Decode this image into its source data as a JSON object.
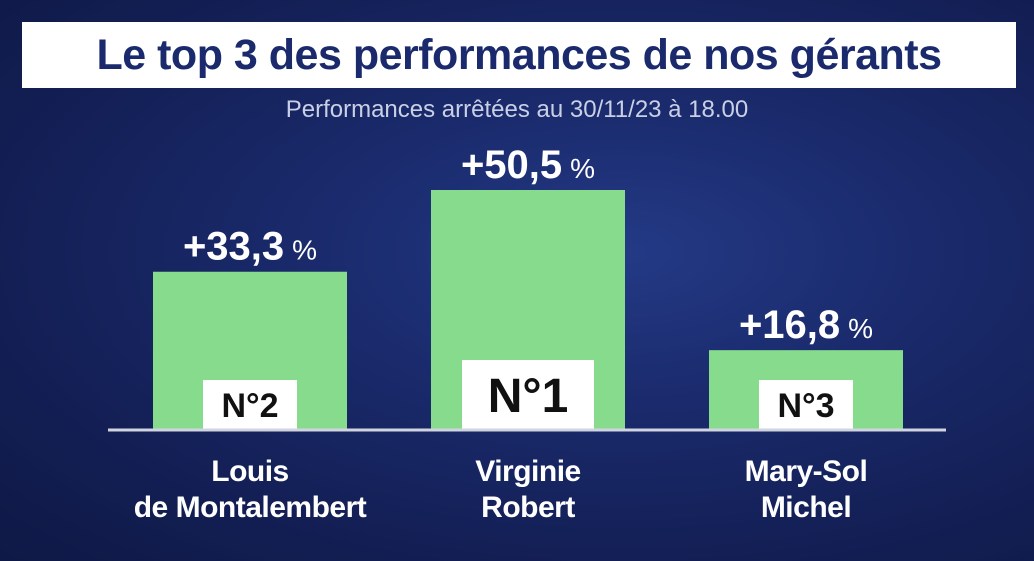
{
  "title": "Le top 3 des performances de nos gérants",
  "subtitle": "Performances arrêtées au 30/11/23 à 18.00",
  "colors": {
    "bar": "#86dc8c",
    "background": "#1a2a6c",
    "baseline": "#d0d4e0",
    "rank_box": "#ffffff"
  },
  "chart_data": {
    "type": "bar",
    "categories": [
      "Louis de Montalembert",
      "Virginie Robert",
      "Mary-Sol Michel"
    ],
    "values": [
      33.3,
      50.5,
      16.8
    ],
    "value_labels": [
      "+33,3",
      "+50,5",
      "+16,8"
    ],
    "unit": "%",
    "ranks": [
      "N°2",
      "N°1",
      "N°3"
    ],
    "names": [
      [
        "Louis",
        "de Montalembert"
      ],
      [
        "Virginie",
        "Robert"
      ],
      [
        "Mary-Sol",
        "Michel"
      ]
    ],
    "title": "Le top 3 des performances de nos gérants",
    "subtitle": "Performances arrêtées au 30/11/23 à 18.00",
    "xlabel": "",
    "ylabel": "",
    "ylim": [
      0,
      50.5
    ],
    "grid": false,
    "legend": "none"
  }
}
